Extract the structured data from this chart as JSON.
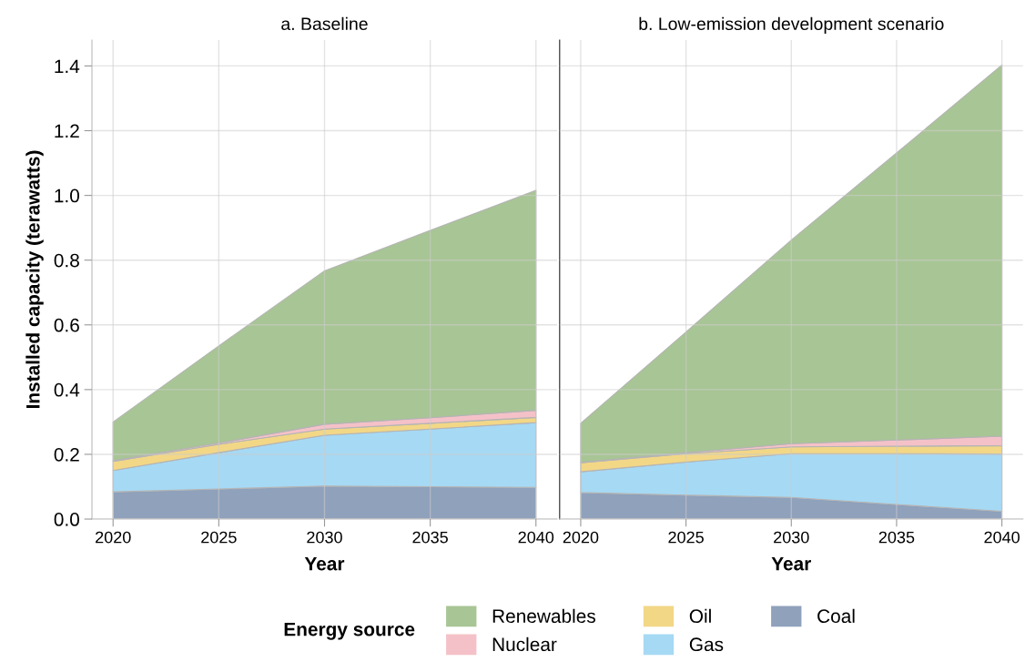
{
  "chart_data": [
    {
      "type": "area",
      "stacked": true,
      "title": "a. Baseline",
      "xlabel": "Year",
      "ylabel": "Installed capacity (terawatts)",
      "legend_title": "Energy source",
      "legend": "bottom",
      "grid": true,
      "x": [
        2020,
        2025,
        2030,
        2035,
        2040
      ],
      "xlim": [
        2019,
        2041
      ],
      "xticks": [
        2020,
        2025,
        2030,
        2035,
        2040
      ],
      "ylim": [
        0,
        1.48
      ],
      "yticks": [
        {
          "value": 0,
          "label": "0.0"
        },
        {
          "value": 0.2,
          "label": "0.2"
        },
        {
          "value": 0.4,
          "label": "0.4"
        },
        {
          "value": 0.6,
          "label": "0.6"
        },
        {
          "value": 0.8,
          "label": "0.8"
        },
        {
          "value": 1.0,
          "label": "1.0"
        },
        {
          "value": 1.2,
          "label": "1.2"
        },
        {
          "value": 1.4,
          "label": "1.4"
        }
      ],
      "series": [
        {
          "name": "Coal",
          "color": "#8fa1bb",
          "values": [
            0.084,
            0.093,
            0.102,
            0.1,
            0.098
          ]
        },
        {
          "name": "Gas",
          "color": "#a6d9f4",
          "values": [
            0.066,
            0.112,
            0.157,
            0.178,
            0.2
          ]
        },
        {
          "name": "Oil",
          "color": "#f2d787",
          "values": [
            0.028,
            0.026,
            0.019,
            0.018,
            0.016
          ]
        },
        {
          "name": "Nuclear",
          "color": "#f5c1c8",
          "values": [
            0.003,
            0.004,
            0.015,
            0.017,
            0.022
          ]
        },
        {
          "name": "Renewables",
          "color": "#a8c595",
          "values": [
            0.119,
            0.3,
            0.474,
            0.579,
            0.68
          ]
        }
      ]
    },
    {
      "type": "area",
      "stacked": true,
      "title": "b. Low-emission development scenario",
      "xlabel": "Year",
      "grid": true,
      "tick_labels": "x",
      "x": [
        2020,
        2025,
        2030,
        2035,
        2040
      ],
      "xlim": [
        2019,
        2041
      ],
      "xticks": [
        2020,
        2025,
        2030,
        2035,
        2040
      ],
      "ylim": [
        0,
        1.48
      ],
      "yticks": [
        {
          "value": 0,
          "label": null
        },
        {
          "value": 0.2,
          "label": null
        },
        {
          "value": 0.4,
          "label": null
        },
        {
          "value": 0.6,
          "label": null
        },
        {
          "value": 0.8,
          "label": null
        },
        {
          "value": 1.0,
          "label": null
        },
        {
          "value": 1.2,
          "label": null
        },
        {
          "value": 1.4,
          "label": null
        }
      ],
      "series": [
        {
          "color": "#8fa1bb",
          "values": [
            0.082,
            0.074,
            0.067,
            0.045,
            0.024
          ]
        },
        {
          "color": "#a6d9f4",
          "values": [
            0.064,
            0.102,
            0.135,
            0.157,
            0.177
          ]
        },
        {
          "color": "#f2d787",
          "values": [
            0.028,
            0.026,
            0.021,
            0.023,
            0.026
          ]
        },
        {
          "color": "#f5c1c8",
          "values": [
            0.001,
            0.003,
            0.01,
            0.019,
            0.029
          ]
        },
        {
          "color": "#a8c595",
          "values": [
            0.121,
            0.373,
            0.629,
            0.887,
            1.147
          ]
        }
      ]
    }
  ]
}
